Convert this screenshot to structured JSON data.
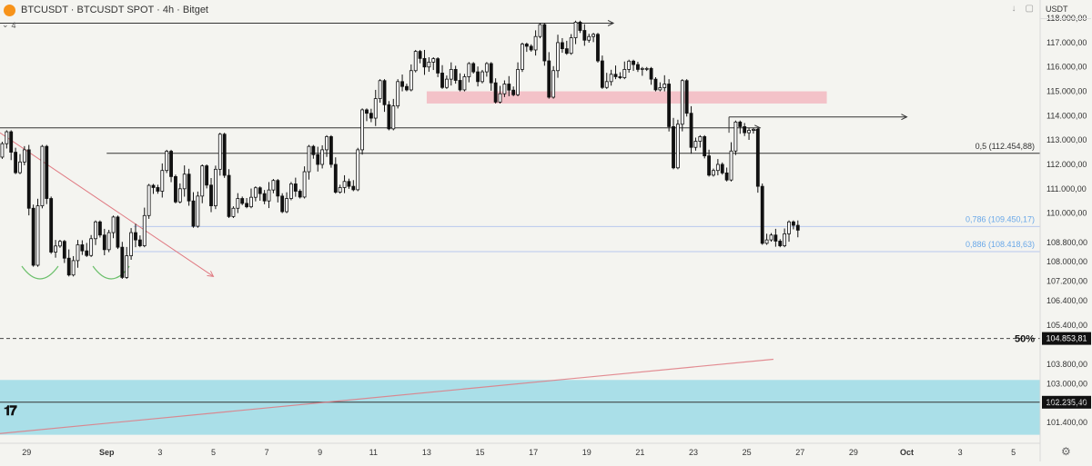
{
  "header": {
    "title": "BTCUSDT · BTCUSDT SPOT · 4h · Bitget",
    "indicator_count": "4",
    "currency": "USDT",
    "icons": [
      "bitcoin-icon",
      "chevron-down-icon",
      "arrow-down-icon",
      "maximize-icon",
      "settings-icon",
      "tradingview-logo"
    ]
  },
  "colors": {
    "background": "#f4f4f0",
    "up_candle": "#ffffff",
    "down_candle": "#111111",
    "supply_zone": "#f3c2c8",
    "demand_zone": "#aadfe8",
    "fib_line": "#b8c8ee",
    "fib_label": "#6aa8e8",
    "trendline": "#e07a82",
    "double_bottom": "#6abf6a"
  },
  "chart_data": {
    "type": "candlestick",
    "symbol": "BTCUSDT",
    "timeframe": "4h",
    "exchange": "Bitget",
    "x_ticks": [
      "29",
      "Sep",
      "3",
      "5",
      "7",
      "9",
      "11",
      "13",
      "15",
      "17",
      "19",
      "21",
      "23",
      "25",
      "27",
      "29",
      "Oct",
      "3",
      "5"
    ],
    "y_ticks": [
      "118.000,00",
      "117.000,00",
      "116.000,00",
      "115.000,00",
      "114.000,00",
      "113.000,00",
      "112.000,00",
      "111.000,00",
      "110.000,00",
      "108.800,00",
      "108.000,00",
      "107.200,00",
      "106.400,00",
      "105.400,00",
      "103.800,00",
      "103.000,00",
      "102.200,00",
      "101.400,00"
    ],
    "y_tick_values": [
      118000,
      117000,
      116000,
      115000,
      114000,
      113000,
      112000,
      111000,
      110000,
      108800,
      108000,
      107200,
      106400,
      105400,
      103800,
      103000,
      102200,
      101400
    ],
    "ylim": [
      100550,
      118750
    ],
    "x_range": [
      "2025-08-28",
      "2025-10-06"
    ],
    "candles_daily_approx": [
      {
        "date": "2025-08-28",
        "open": 112300,
        "high": 113400,
        "low": 111600,
        "close": 112600
      },
      {
        "date": "2025-08-29",
        "open": 112600,
        "high": 112800,
        "low": 107800,
        "close": 108400
      },
      {
        "date": "2025-08-30",
        "open": 108400,
        "high": 108900,
        "low": 107400,
        "close": 108700
      },
      {
        "date": "2025-08-31",
        "open": 108700,
        "high": 109700,
        "low": 108200,
        "close": 108500
      },
      {
        "date": "2025-09-01",
        "open": 108500,
        "high": 109900,
        "low": 107300,
        "close": 109200
      },
      {
        "date": "2025-09-02",
        "open": 109200,
        "high": 111200,
        "low": 108600,
        "close": 110900
      },
      {
        "date": "2025-09-03",
        "open": 110900,
        "high": 112600,
        "low": 110400,
        "close": 111600
      },
      {
        "date": "2025-09-04",
        "open": 111600,
        "high": 112000,
        "low": 109400,
        "close": 110300
      },
      {
        "date": "2025-09-05",
        "open": 110300,
        "high": 113300,
        "low": 109800,
        "close": 110600
      },
      {
        "date": "2025-09-06",
        "open": 110600,
        "high": 111100,
        "low": 110200,
        "close": 110500
      },
      {
        "date": "2025-09-07",
        "open": 110500,
        "high": 111400,
        "low": 110000,
        "close": 111200
      },
      {
        "date": "2025-09-08",
        "open": 111200,
        "high": 112800,
        "low": 110600,
        "close": 112000
      },
      {
        "date": "2025-09-09",
        "open": 112000,
        "high": 113200,
        "low": 110800,
        "close": 111300
      },
      {
        "date": "2025-09-10",
        "open": 111300,
        "high": 114300,
        "low": 110900,
        "close": 113900
      },
      {
        "date": "2025-09-11",
        "open": 113900,
        "high": 115500,
        "low": 113400,
        "close": 115400
      },
      {
        "date": "2025-09-12",
        "open": 115400,
        "high": 116700,
        "low": 115000,
        "close": 116000
      },
      {
        "date": "2025-09-13",
        "open": 116000,
        "high": 116400,
        "low": 115100,
        "close": 115900
      },
      {
        "date": "2025-09-14",
        "open": 115900,
        "high": 116200,
        "low": 115000,
        "close": 115400
      },
      {
        "date": "2025-09-15",
        "open": 115400,
        "high": 116200,
        "low": 114500,
        "close": 115300
      },
      {
        "date": "2025-09-16",
        "open": 115300,
        "high": 117000,
        "low": 114800,
        "close": 116700
      },
      {
        "date": "2025-09-17",
        "open": 116700,
        "high": 117800,
        "low": 114700,
        "close": 117000
      },
      {
        "date": "2025-09-18",
        "open": 117000,
        "high": 117900,
        "low": 116500,
        "close": 117100
      },
      {
        "date": "2025-09-19",
        "open": 117100,
        "high": 117400,
        "low": 115100,
        "close": 115700
      },
      {
        "date": "2025-09-20",
        "open": 115700,
        "high": 116300,
        "low": 115500,
        "close": 115900
      },
      {
        "date": "2025-09-21",
        "open": 115900,
        "high": 116000,
        "low": 115000,
        "close": 115300
      },
      {
        "date": "2025-09-22",
        "open": 115300,
        "high": 115500,
        "low": 111800,
        "close": 112700
      },
      {
        "date": "2025-09-23",
        "open": 112700,
        "high": 113200,
        "low": 111500,
        "close": 112000
      },
      {
        "date": "2025-09-24",
        "open": 112000,
        "high": 113800,
        "low": 111300,
        "close": 113300
      },
      {
        "date": "2025-09-25",
        "open": 113300,
        "high": 113500,
        "low": 108700,
        "close": 109100
      },
      {
        "date": "2025-09-26",
        "open": 109100,
        "high": 109700,
        "low": 108600,
        "close": 109300
      }
    ],
    "horizontal_levels": [
      {
        "value": 117800,
        "kind": "resistance-ray"
      },
      {
        "value": 113500,
        "kind": "resistance-ray"
      },
      {
        "value": 113950,
        "kind": "resistance-ray"
      },
      {
        "value": 112454.88,
        "label": "0,5 (112.454,88)"
      },
      {
        "value": 109450.17,
        "label": "0,786 (109.450,17)"
      },
      {
        "value": 108418.63,
        "label": "0,886 (108.418,63)"
      },
      {
        "value": 104853.81,
        "label": "50%",
        "price_tag": "104.853,81"
      },
      {
        "value": 102235.4,
        "price_tag": "102.235,40"
      }
    ],
    "zones": [
      {
        "kind": "supply",
        "from": "2025-09-13",
        "to": "2025-09-28",
        "low": 114500,
        "high": 115000
      },
      {
        "kind": "demand",
        "low": 100900,
        "high": 103150
      }
    ],
    "trendlines": [
      {
        "kind": "falling",
        "from": {
          "date": "2025-08-28",
          "value": 113300
        },
        "to": {
          "date": "2025-09-05",
          "value": 107400
        }
      },
      {
        "kind": "rising",
        "from": {
          "date": "2025-08-28",
          "value": 100950
        },
        "to": {
          "date": "2025-09-26",
          "value": 104000
        }
      }
    ],
    "grid": false,
    "legend": "none"
  }
}
